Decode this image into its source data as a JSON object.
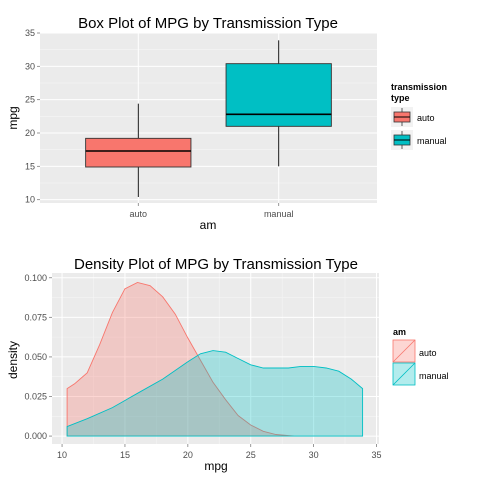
{
  "colors": {
    "auto": "#F8766D",
    "manual": "#00BFC4",
    "panel": "#EBEBEB",
    "grid_major": "#FFFFFF",
    "grid_minor": "#F5F5F5"
  },
  "chart_data": [
    {
      "type": "box",
      "title": "Box Plot of MPG by Transmission Type",
      "xlabel": "am",
      "ylabel": "mpg",
      "categories": [
        "auto",
        "manual"
      ],
      "ylim": [
        9.5,
        35
      ],
      "yticks": [
        10,
        15,
        20,
        25,
        30,
        35
      ],
      "grid": true,
      "legend": {
        "title_line1": "transmission",
        "title_line2": "type",
        "entries": [
          "auto",
          "manual"
        ],
        "placement": "right"
      },
      "boxes": [
        {
          "category": "auto",
          "min": 10.4,
          "q1": 14.9,
          "median": 17.3,
          "q3": 19.2,
          "max": 24.4
        },
        {
          "category": "manual",
          "min": 15.0,
          "q1": 21.0,
          "median": 22.8,
          "q3": 30.4,
          "max": 33.9
        }
      ]
    },
    {
      "type": "area",
      "title": "Density Plot of MPG by Transmission Type",
      "xlabel": "mpg",
      "ylabel": "density",
      "xlim": [
        9.2,
        35.2
      ],
      "ylim": [
        -0.005,
        0.103
      ],
      "xticks": [
        10,
        15,
        20,
        25,
        30,
        35
      ],
      "yticks": [
        0.0,
        0.025,
        0.05,
        0.075,
        0.1
      ],
      "ytick_labels": [
        "0.000",
        "0.025",
        "0.050",
        "0.075",
        "0.100"
      ],
      "grid": true,
      "legend": {
        "title": "am",
        "entries": [
          "auto",
          "manual"
        ],
        "placement": "right"
      },
      "series": [
        {
          "name": "auto",
          "x": [
            10.4,
            11,
            12,
            13,
            14,
            15,
            16,
            17,
            18,
            19,
            20,
            21,
            22,
            23,
            24,
            25,
            26,
            27,
            28,
            28.4
          ],
          "y": [
            0.03,
            0.033,
            0.04,
            0.058,
            0.078,
            0.093,
            0.097,
            0.095,
            0.088,
            0.077,
            0.062,
            0.048,
            0.034,
            0.023,
            0.013,
            0.007,
            0.003,
            0.001,
            0.0003,
            0.0
          ]
        },
        {
          "name": "manual",
          "x": [
            10.4,
            12,
            14,
            16,
            18,
            20,
            21,
            22,
            23,
            24,
            25,
            26,
            27,
            28,
            29,
            30,
            31,
            32,
            33,
            33.9
          ],
          "y": [
            0.006,
            0.011,
            0.018,
            0.027,
            0.036,
            0.047,
            0.052,
            0.054,
            0.053,
            0.049,
            0.045,
            0.043,
            0.043,
            0.043,
            0.044,
            0.044,
            0.043,
            0.041,
            0.036,
            0.03
          ]
        }
      ]
    }
  ]
}
